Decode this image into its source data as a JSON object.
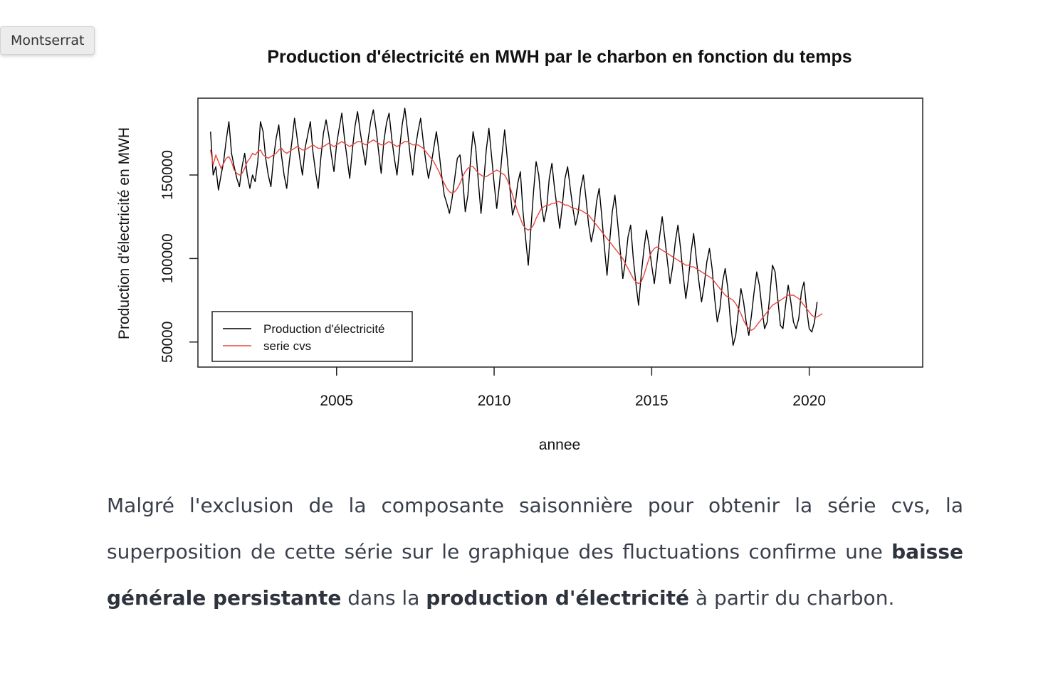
{
  "font_chip": {
    "label": "Montserrat"
  },
  "chart_data": {
    "type": "line",
    "title": "Production d'électricité en MWH par le charbon en fonction du temps",
    "xlabel": "annee",
    "ylabel": "Production d'électricité en MWH",
    "xlim": [
      2000.6,
      2023.6
    ],
    "ylim": [
      35000,
      196000
    ],
    "x_ticks": [
      2005,
      2010,
      2015,
      2020
    ],
    "y_ticks": [
      50000,
      100000,
      150000
    ],
    "x_tick_labels": [
      "2005",
      "2010",
      "2015",
      "2020"
    ],
    "y_tick_labels": [
      "50000",
      "100000",
      "150000"
    ],
    "grid": false,
    "legend_position": "bottom-left",
    "x_start": 2001.0,
    "x_step": 0.08333,
    "series": [
      {
        "name": "Production d'électricité",
        "color": "#000000",
        "values": [
          176000,
          150000,
          155000,
          141000,
          150000,
          158000,
          171000,
          182000,
          163000,
          155000,
          148000,
          143000,
          155000,
          163000,
          150000,
          142000,
          150000,
          146000,
          158000,
          182000,
          176000,
          160000,
          150000,
          143000,
          160000,
          172000,
          180000,
          162000,
          150000,
          142000,
          158000,
          170000,
          184000,
          172000,
          160000,
          150000,
          166000,
          174000,
          182000,
          164000,
          152000,
          142000,
          160000,
          175000,
          183000,
          174000,
          162000,
          152000,
          168000,
          178000,
          187000,
          172000,
          160000,
          148000,
          165000,
          179000,
          188000,
          176000,
          166000,
          156000,
          171000,
          182000,
          189000,
          178000,
          164000,
          151000,
          170000,
          181000,
          187000,
          172000,
          160000,
          150000,
          166000,
          180000,
          190000,
          177000,
          162000,
          150000,
          166000,
          176000,
          184000,
          170000,
          158000,
          148000,
          156000,
          166000,
          176000,
          164000,
          150000,
          138000,
          133000,
          127000,
          136000,
          148000,
          160000,
          162000,
          148000,
          128000,
          138000,
          158000,
          176000,
          166000,
          146000,
          127000,
          145000,
          165000,
          178000,
          162000,
          145000,
          130000,
          144000,
          162000,
          177000,
          160000,
          142000,
          126000,
          132000,
          145000,
          152000,
          128000,
          112000,
          96000,
          118000,
          140000,
          158000,
          150000,
          132000,
          122000,
          130000,
          148000,
          157000,
          142000,
          130000,
          118000,
          132000,
          148000,
          155000,
          142000,
          130000,
          120000,
          127000,
          142000,
          150000,
          136000,
          120000,
          110000,
          118000,
          134000,
          142000,
          125000,
          107000,
          90000,
          110000,
          128000,
          138000,
          122000,
          105000,
          88000,
          98000,
          113000,
          120000,
          100000,
          85000,
          72000,
          90000,
          105000,
          117000,
          108000,
          96000,
          85000,
          98000,
          113000,
          125000,
          112000,
          98000,
          85000,
          95000,
          110000,
          120000,
          106000,
          90000,
          76000,
          88000,
          104000,
          115000,
          100000,
          86000,
          74000,
          84000,
          98000,
          106000,
          94000,
          76000,
          62000,
          70000,
          86000,
          94000,
          82000,
          62000,
          48000,
          54000,
          68000,
          82000,
          74000,
          62000,
          54000,
          66000,
          80000,
          92000,
          84000,
          70000,
          58000,
          62000,
          78000,
          96000,
          92000,
          76000,
          60000,
          58000,
          72000,
          84000,
          74000,
          62000,
          58000,
          64000,
          80000,
          86000,
          70000,
          58000,
          56000,
          62000,
          74000
        ]
      },
      {
        "name": "serie cvs",
        "color": "#e8473f",
        "values": [
          165000,
          156000,
          162000,
          158000,
          154000,
          157000,
          160000,
          161000,
          158000,
          153000,
          151000,
          150000,
          151000,
          154000,
          158000,
          160000,
          163000,
          162000,
          164000,
          165000,
          162000,
          161000,
          160000,
          161000,
          162000,
          163000,
          165000,
          166000,
          164000,
          163000,
          164000,
          165000,
          166000,
          167000,
          166000,
          165000,
          165000,
          166000,
          167000,
          168000,
          167000,
          166000,
          166000,
          167000,
          168000,
          169000,
          168000,
          167000,
          168000,
          169000,
          170000,
          169000,
          168000,
          167000,
          168000,
          169000,
          170000,
          170000,
          169000,
          168000,
          169000,
          170000,
          171000,
          170000,
          169000,
          168000,
          168000,
          169000,
          170000,
          169000,
          168000,
          167000,
          168000,
          169000,
          170000,
          170000,
          169000,
          168000,
          168000,
          168000,
          167000,
          166000,
          164000,
          162000,
          160000,
          158000,
          155000,
          152000,
          148000,
          145000,
          142000,
          140000,
          139000,
          140000,
          142000,
          145000,
          149000,
          152000,
          154000,
          155000,
          155000,
          153000,
          151000,
          150000,
          149000,
          149000,
          150000,
          151000,
          152000,
          153000,
          152000,
          151000,
          150000,
          147000,
          143000,
          138000,
          133000,
          128000,
          124000,
          120000,
          118000,
          117000,
          118000,
          120000,
          124000,
          127000,
          130000,
          131000,
          132000,
          132000,
          133000,
          133000,
          134000,
          134000,
          133000,
          132000,
          132000,
          131000,
          130000,
          130000,
          129000,
          129000,
          128000,
          127000,
          126000,
          124000,
          122000,
          120000,
          118000,
          116000,
          114000,
          112000,
          110000,
          108000,
          106000,
          104000,
          102000,
          100000,
          97000,
          94000,
          91000,
          88000,
          86000,
          85000,
          86000,
          90000,
          95000,
          100000,
          104000,
          106000,
          107000,
          106000,
          105000,
          104000,
          103000,
          102000,
          101000,
          100000,
          99000,
          98000,
          97000,
          96000,
          96000,
          95000,
          95000,
          94000,
          93000,
          92000,
          91000,
          90000,
          89000,
          88000,
          86000,
          84000,
          82000,
          80000,
          78000,
          77000,
          76000,
          75000,
          73000,
          70000,
          67000,
          63000,
          60000,
          58000,
          57000,
          58000,
          60000,
          62000,
          64000,
          66000,
          68000,
          70000,
          72000,
          73000,
          74000,
          75000,
          76000,
          77000,
          78000,
          78000,
          78000,
          77000,
          76000,
          74000,
          72000,
          70000,
          68000,
          66000,
          65000,
          65000,
          66000,
          67000
        ]
      }
    ]
  },
  "caption": {
    "part1": "Malgré l'exclusion de la composante saisonnière pour obtenir la série cvs, la superposition de cette série sur le graphique des fluctuations confirme une ",
    "bold1": "baisse générale persistante",
    "part2": " dans la ",
    "bold2": "production d'électricité",
    "part3": " à partir du charbon."
  }
}
